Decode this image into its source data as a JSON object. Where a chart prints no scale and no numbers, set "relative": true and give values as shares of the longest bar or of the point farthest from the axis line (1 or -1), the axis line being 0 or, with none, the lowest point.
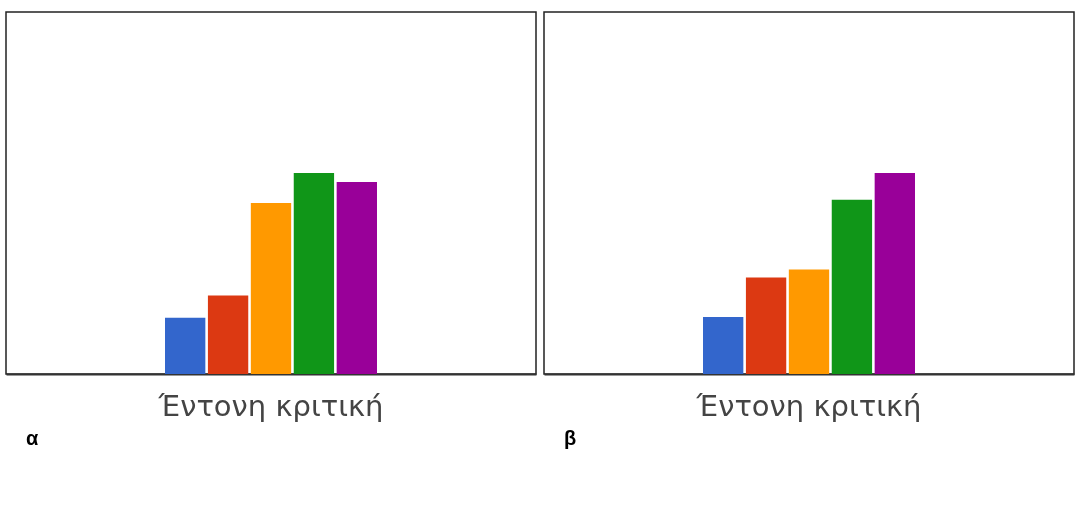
{
  "chart_data": [
    {
      "type": "bar",
      "categories": [
        "Έντονη κριτική"
      ],
      "relative": true,
      "annotations": [
        "α"
      ],
      "series": [
        {
          "color": "#3366cc",
          "values": [
            0.28
          ]
        },
        {
          "color": "#dc3912",
          "values": [
            0.39
          ]
        },
        {
          "color": "#ff9900",
          "values": [
            0.85
          ]
        },
        {
          "color": "#109618",
          "values": [
            1
          ]
        },
        {
          "color": "#990099",
          "values": [
            0.955
          ]
        }
      ]
    },
    {
      "type": "bar",
      "categories": [
        "Έντονη κριτική"
      ],
      "relative": true,
      "annotations": [
        "β"
      ],
      "series": [
        {
          "color": "#3366cc",
          "values": [
            0.284
          ]
        },
        {
          "color": "#dc3912",
          "values": [
            0.48
          ]
        },
        {
          "color": "#ff9900",
          "values": [
            0.52
          ]
        },
        {
          "color": "#109618",
          "values": [
            0.867
          ]
        },
        {
          "color": "#990099",
          "values": [
            1
          ]
        }
      ]
    }
  ]
}
